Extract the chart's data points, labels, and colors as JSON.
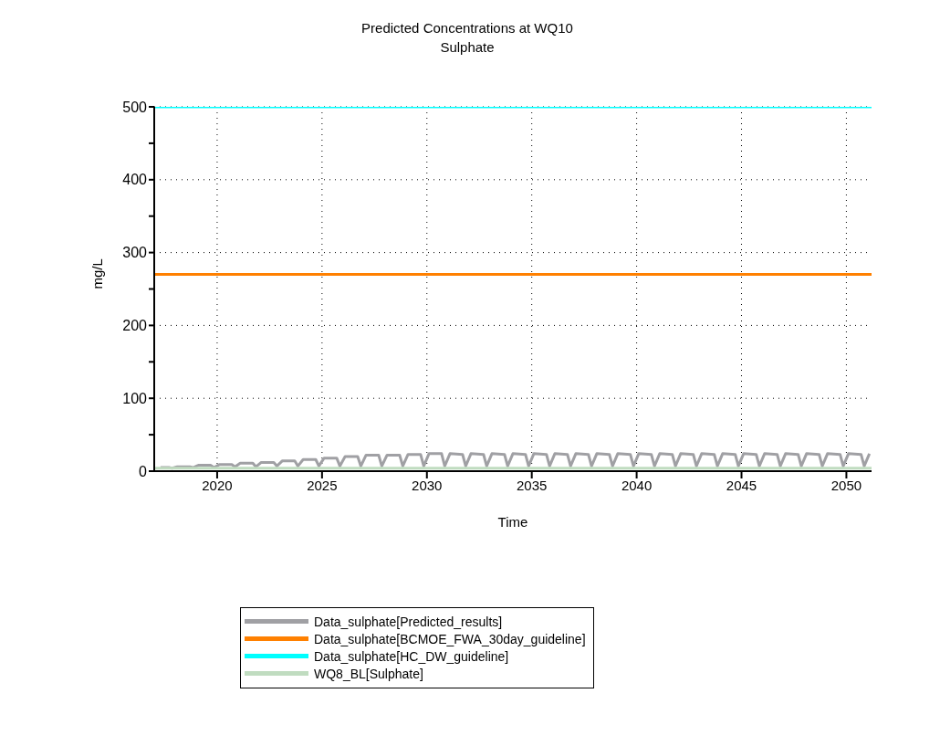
{
  "chart_data": {
    "type": "line",
    "title": "Predicted Concentrations at WQ10",
    "subtitle": "Sulphate",
    "xlabel": "Time",
    "ylabel": "mg/L",
    "xlim": [
      2017,
      2051.2
    ],
    "xticks": [
      2020,
      2025,
      2030,
      2035,
      2040,
      2045,
      2050
    ],
    "ylim": [
      0,
      500
    ],
    "yticks": [
      0,
      {
        "value": 50,
        "label": null
      },
      100,
      {
        "value": 150,
        "label": null
      },
      200,
      {
        "value": 250,
        "label": null
      },
      300,
      {
        "value": 350,
        "label": null
      },
      400,
      {
        "value": 450,
        "label": null
      },
      500
    ],
    "grid": true,
    "legend": "bottom",
    "marker": "none",
    "line_style": "solid",
    "series": [
      {
        "name": "Data_sulphate[Predicted_results]",
        "color": "#a0a0a4",
        "x": [
          2017.3,
          2017.7,
          2017.85,
          2018.1,
          2018.7,
          2018.85,
          2019.1,
          2019.7,
          2019.85,
          2020.1,
          2020.7,
          2020.85,
          2021.1,
          2021.7,
          2021.85,
          2022.1,
          2022.7,
          2022.85,
          2023.1,
          2023.7,
          2023.85,
          2024.1,
          2024.7,
          2024.85,
          2025.1,
          2025.7,
          2025.85,
          2026.1,
          2026.7,
          2026.85,
          2027.1,
          2027.7,
          2027.85,
          2028.1,
          2028.7,
          2028.85,
          2029.1,
          2029.7,
          2029.85,
          2030.1,
          2030.7,
          2030.85,
          2031.1,
          2031.7,
          2031.85,
          2032.1,
          2032.7,
          2032.85,
          2033.1,
          2033.7,
          2033.85,
          2034.1,
          2034.7,
          2034.85,
          2035.1,
          2035.7,
          2035.85,
          2036.1,
          2036.7,
          2036.85,
          2037.1,
          2037.7,
          2037.85,
          2038.1,
          2038.7,
          2038.85,
          2039.1,
          2039.7,
          2039.85,
          2040.1,
          2040.7,
          2040.85,
          2041.1,
          2041.7,
          2041.85,
          2042.1,
          2042.7,
          2042.85,
          2043.1,
          2043.7,
          2043.85,
          2044.1,
          2044.7,
          2044.85,
          2045.1,
          2045.7,
          2045.85,
          2046.1,
          2046.7,
          2046.85,
          2047.1,
          2047.7,
          2047.85,
          2048.1,
          2048.7,
          2048.85,
          2049.1,
          2049.7,
          2049.85,
          2050.1,
          2050.7,
          2050.85,
          2051.1
        ],
        "values": [
          5,
          5,
          4,
          6,
          6,
          5,
          8,
          8,
          5,
          9,
          9,
          6,
          11,
          11,
          6,
          12,
          12,
          7,
          14,
          14,
          7,
          16,
          16,
          7,
          18,
          18,
          7,
          20,
          20,
          7,
          22,
          22,
          7,
          22,
          22,
          7,
          23,
          23,
          7,
          24,
          24,
          7,
          24,
          23,
          7,
          24,
          23,
          7,
          24,
          23,
          7,
          24,
          23,
          7,
          24,
          23,
          7,
          24,
          23,
          7,
          24,
          23,
          7,
          24,
          23,
          7,
          24,
          23,
          7,
          24,
          23,
          7,
          24,
          23,
          7,
          24,
          23,
          7,
          24,
          23,
          7,
          24,
          23,
          7,
          24,
          23,
          7,
          24,
          23,
          7,
          24,
          23,
          7,
          24,
          23,
          7,
          24,
          23,
          7,
          24,
          23,
          7,
          24
        ]
      },
      {
        "name": "Data_sulphate[BCMOE_FWA_30day_guideline]",
        "color": "#ff8000",
        "x": [
          2017,
          2051.2
        ],
        "values": [
          270,
          270
        ]
      },
      {
        "name": "Data_sulphate[HC_DW_guideline]",
        "color": "#00ffff",
        "x": [
          2017,
          2051.2
        ],
        "values": [
          500,
          500
        ]
      },
      {
        "name": "WQ8_BL[Sulphate]",
        "color": "#c0dcc0",
        "x": [
          2017,
          2051.2
        ],
        "values": [
          4,
          4
        ]
      }
    ]
  }
}
